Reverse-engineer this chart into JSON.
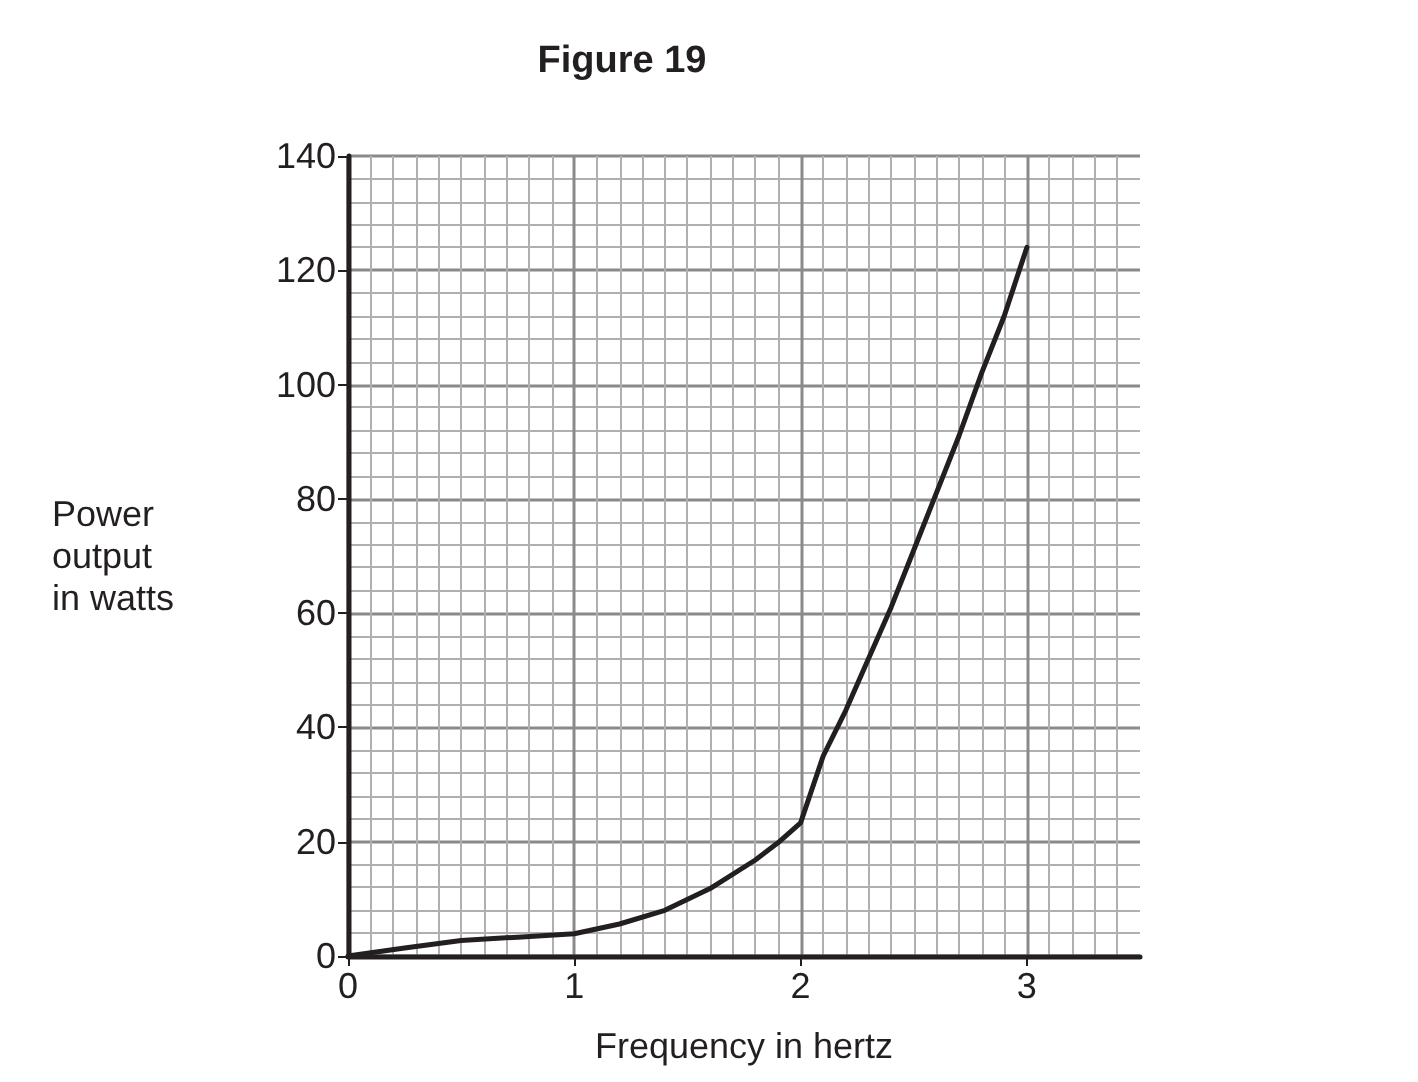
{
  "chart_data": {
    "type": "line",
    "title": "Figure 19",
    "xlabel": "Frequency in hertz",
    "ylabel": "Power\noutput\nin watts",
    "x": [
      0,
      0.25,
      0.5,
      0.75,
      1,
      1.2,
      1.4,
      1.6,
      1.8,
      1.9,
      2,
      2.1,
      2.2,
      2.3,
      2.4,
      2.5,
      2.6,
      2.7,
      2.8,
      2.9,
      3
    ],
    "series": [
      {
        "color": "#231f20",
        "values": [
          0,
          1.4,
          2.7,
          3.3,
          3.9,
          5.6,
          8,
          11.8,
          16.8,
          19.8,
          23.3,
          35,
          43,
          52,
          61,
          71,
          81,
          91,
          102,
          112,
          124
        ]
      }
    ],
    "xlim": [
      0,
      3.5
    ],
    "xticks": [
      0,
      1,
      2,
      3
    ],
    "ylim": [
      0,
      140
    ],
    "yticks": [
      0,
      20,
      40,
      60,
      80,
      100,
      120,
      140
    ],
    "grid": true,
    "marker": "none",
    "line_style": "solid"
  }
}
